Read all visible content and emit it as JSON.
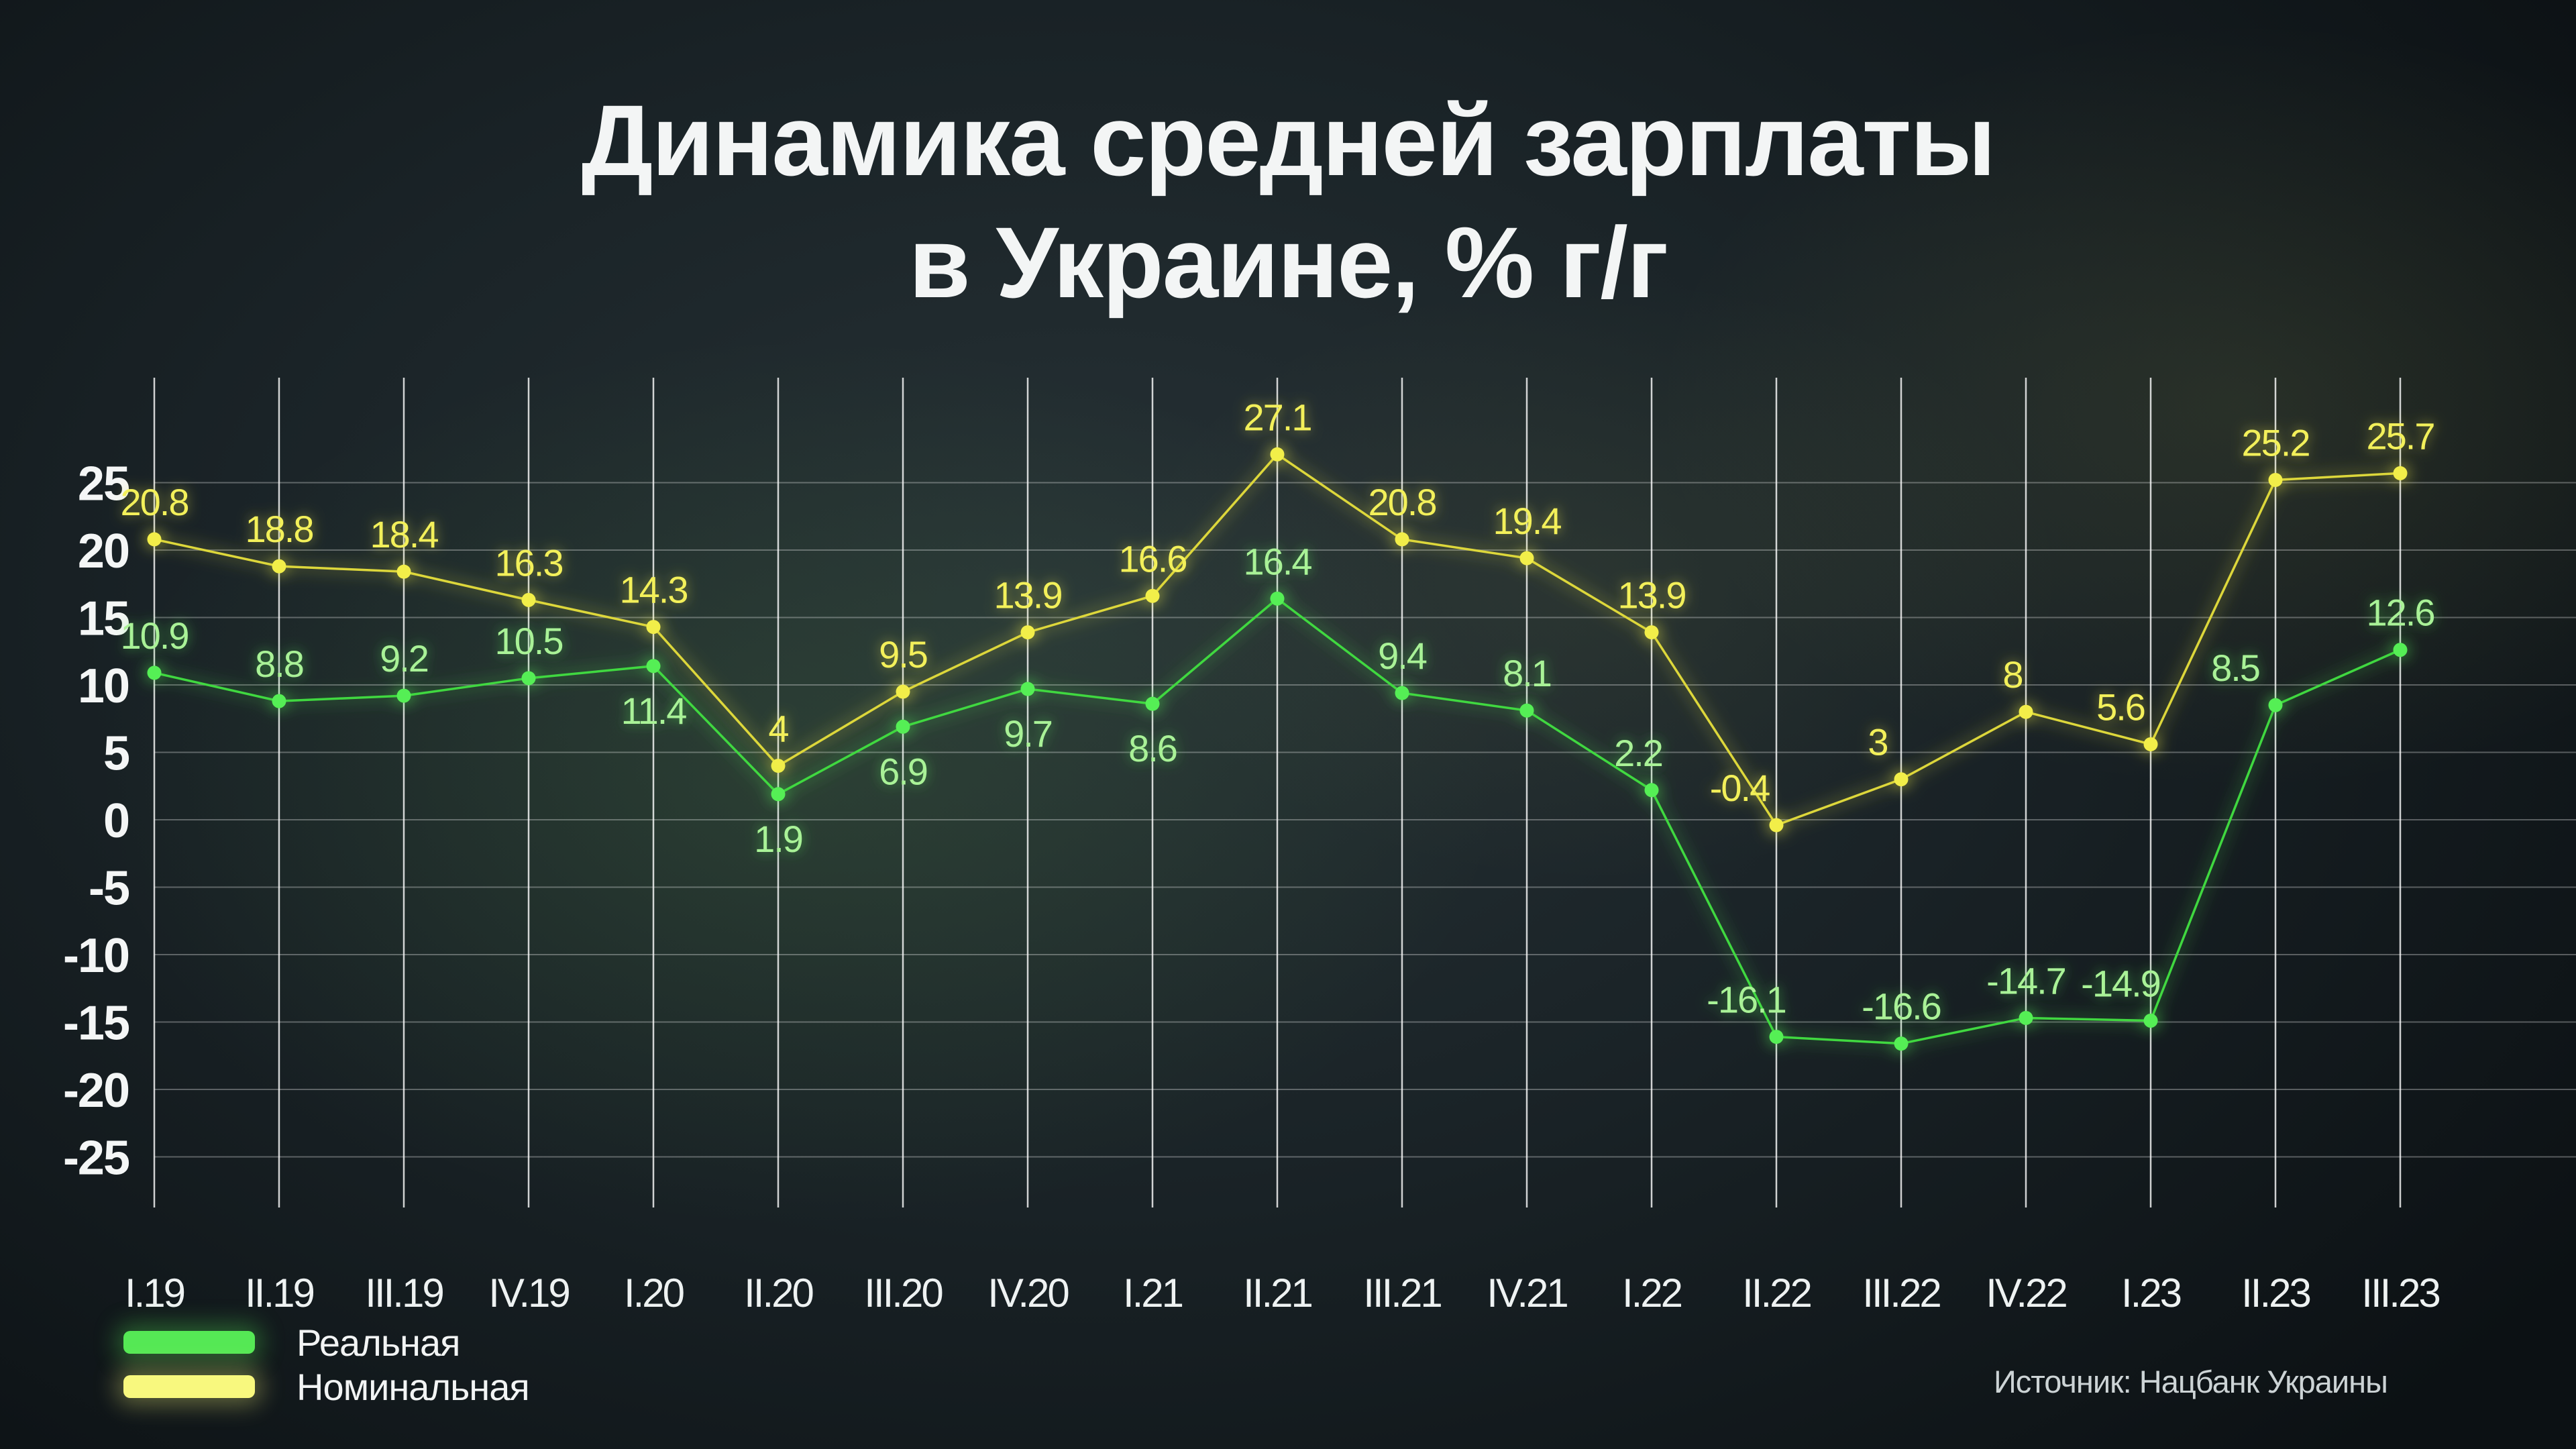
{
  "title_lines": [
    "Динамика средней зарплаты",
    "в Украине, % г/г"
  ],
  "chart_data": {
    "type": "line",
    "title": "Динамика средней зарплаты в Украине, % г/г",
    "categories": [
      "I.19",
      "II.19",
      "III.19",
      "IV.19",
      "I.20",
      "II.20",
      "III.20",
      "IV.20",
      "I.21",
      "II.21",
      "III.21",
      "IV.21",
      "I.22",
      "II.22",
      "III.22",
      "IV.22",
      "I.23",
      "II.23",
      "III.23"
    ],
    "series": [
      {
        "name": "Реальная",
        "color": "#3fd83f",
        "point_color": "#55ef55",
        "label_color": "#a9f297",
        "swatch_color": "#55e855",
        "values": [
          10.9,
          8.8,
          9.2,
          10.5,
          11.4,
          1.9,
          6.9,
          9.7,
          8.6,
          16.4,
          9.4,
          8.1,
          2.2,
          -16.1,
          -16.6,
          -14.7,
          -14.9,
          8.5,
          12.6
        ],
        "labels": [
          "10.9",
          "8.8",
          "9.2",
          "10.5",
          "11.4",
          "1.9",
          "6.9",
          "9.7",
          "8.6",
          "16.4",
          "9.4",
          "8.1",
          "2.2",
          "-16.1",
          "-16.6",
          "-14.7",
          "-14.9",
          "8.5",
          "12.6"
        ],
        "label_side": [
          "above",
          "above",
          "above",
          "above",
          "below",
          "below",
          "below",
          "below",
          "below",
          "above",
          "above",
          "above",
          "above",
          "above",
          "above",
          "above",
          "above",
          "above",
          "above"
        ],
        "label_dx": [
          0,
          0,
          0,
          0,
          0,
          0,
          0,
          0,
          0,
          0,
          0,
          0,
          -20,
          -45,
          0,
          0,
          -45,
          -60,
          0
        ]
      },
      {
        "name": "Номинальная",
        "color": "#ddd73a",
        "point_color": "#f2ee4a",
        "label_color": "#f3f05a",
        "swatch_color": "#f8f87e",
        "values": [
          20.8,
          18.8,
          18.4,
          16.3,
          14.3,
          4,
          9.5,
          13.9,
          16.6,
          27.1,
          20.8,
          19.4,
          13.9,
          -0.4,
          3,
          8,
          5.6,
          25.2,
          25.7
        ],
        "labels": [
          "20.8",
          "18.8",
          "18.4",
          "16.3",
          "14.3",
          "4",
          "9.5",
          "13.9",
          "16.6",
          "27.1",
          "20.8",
          "19.4",
          "13.9",
          "-0.4",
          "3",
          "8",
          "5.6",
          "25.2",
          "25.7"
        ],
        "label_side": [
          "above",
          "above",
          "above",
          "above",
          "above",
          "above",
          "above",
          "above",
          "above",
          "above",
          "above",
          "above",
          "above",
          "above",
          "above",
          "above",
          "above",
          "above",
          "above"
        ],
        "label_dx": [
          0,
          0,
          0,
          0,
          0,
          0,
          0,
          0,
          0,
          0,
          0,
          0,
          0,
          -55,
          -35,
          -20,
          -45,
          0,
          0
        ]
      }
    ],
    "yticks": [
      25,
      20,
      15,
      10,
      5,
      0,
      -5,
      -10,
      -15,
      -20,
      -25
    ],
    "ylim": [
      -29,
      33
    ],
    "grid": true,
    "legend_position": "bottom-left",
    "source": "Источник: Нацбанк Украины"
  }
}
